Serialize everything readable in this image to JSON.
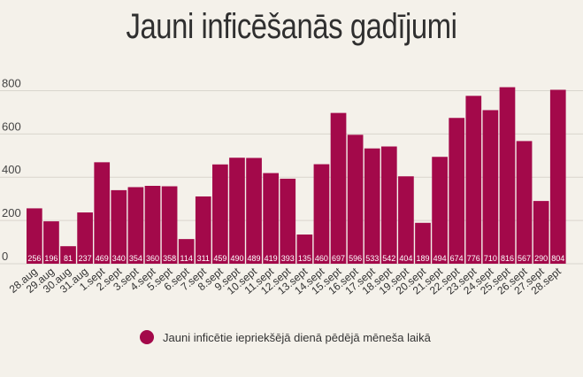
{
  "chart_data": {
    "type": "bar",
    "title": "Jauni inficēšanās gadījumi",
    "categories": [
      "28.aug",
      "29.aug",
      "30.aug",
      "31.aug",
      "1.sept",
      "2.sept",
      "3.sept",
      "4.sept",
      "5.sept",
      "6.sept",
      "7.sept",
      "8.sept",
      "9.sept",
      "10.sept",
      "11.sept",
      "12.sept",
      "13.sept",
      "14.sept",
      "15.sept",
      "16.sept",
      "17.sept",
      "18.sept",
      "19.sept",
      "20.sept",
      "21.sept",
      "22.sept",
      "23.sept",
      "24.sept",
      "25.sept",
      "26.sept",
      "27.sept",
      "28.sept"
    ],
    "series": [
      {
        "name": "Jauni inficētie iepriekšējā dienā pēdējā mēneša laikā",
        "values": [
          256,
          196,
          81,
          237,
          469,
          340,
          354,
          360,
          358,
          114,
          311,
          459,
          490,
          489,
          419,
          393,
          135,
          460,
          697,
          596,
          533,
          542,
          404,
          189,
          494,
          674,
          776,
          710,
          816,
          567,
          290,
          804
        ]
      }
    ],
    "yticks": [
      0,
      200,
      400,
      600,
      800
    ],
    "ylim": [
      0,
      900
    ],
    "grid": true,
    "legend_position": "bottom",
    "bar_color": "#a3094a",
    "grid_color": "#d9d5cd",
    "label_color": "#ffffff"
  }
}
